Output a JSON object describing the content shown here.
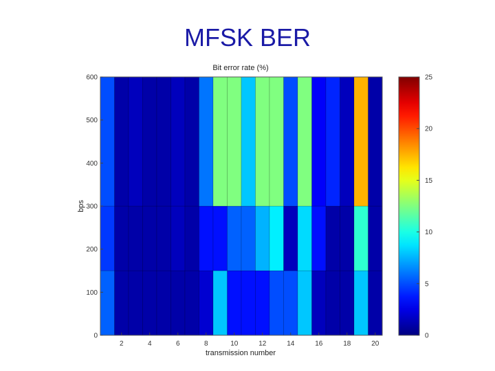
{
  "slide": {
    "title": "MFSK BER"
  },
  "chart_data": {
    "type": "heatmap",
    "title": "Bit error rate (%)",
    "xlabel": "transmission number",
    "ylabel": "bps",
    "x": [
      1,
      2,
      3,
      4,
      5,
      6,
      7,
      8,
      9,
      10,
      11,
      12,
      13,
      14,
      15,
      16,
      17,
      18,
      19,
      20
    ],
    "xlim": [
      0.5,
      20.5
    ],
    "xticks": [
      2,
      4,
      6,
      8,
      10,
      12,
      14,
      16,
      18,
      20
    ],
    "ylim": [
      0,
      600
    ],
    "yticks": [
      0,
      100,
      200,
      300,
      400,
      500,
      600
    ],
    "row_edges": [
      0,
      150,
      300,
      600
    ],
    "rows": [
      {
        "y": "0-150",
        "values": [
          5.5,
          1,
          1,
          1,
          1,
          1,
          1,
          2,
          8,
          3.5,
          3.5,
          3.5,
          5,
          5,
          8,
          1.5,
          1,
          1,
          8,
          1
        ]
      },
      {
        "y": "150-300",
        "values": [
          4.5,
          1,
          1,
          1,
          1,
          1.5,
          1,
          3.5,
          3.5,
          5.5,
          5.5,
          7.5,
          9,
          1.5,
          8.5,
          3.5,
          1,
          1,
          10.5,
          1
        ]
      },
      {
        "y": "300-600",
        "values": [
          5,
          1,
          1.5,
          1,
          1,
          1.5,
          1,
          6,
          12.5,
          12.5,
          8,
          12.5,
          12.5,
          5,
          12.5,
          3,
          4,
          1.5,
          17.5,
          1
        ]
      }
    ],
    "colorbar": {
      "range": [
        0,
        25
      ],
      "ticks": [
        0,
        5,
        10,
        15,
        20,
        25
      ],
      "colormap": "jet"
    },
    "grid": false,
    "legend": "colorbar-right"
  }
}
